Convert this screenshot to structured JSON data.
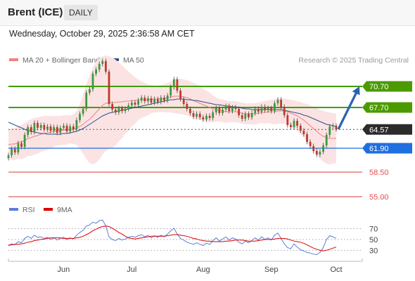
{
  "header": {
    "title": "Brent (ICE)",
    "period": "DAILY"
  },
  "timestamp": "Wednesday, October 29, 2025 2:36:58 AM CET",
  "legend": {
    "ma20": "MA 20 + Bollinger Bands",
    "ma50": "MA 50",
    "rsi": "RSI",
    "ma9": "9MA",
    "colors": {
      "ma20": "#f08080",
      "ma50": "#2b4f8c",
      "rsi": "#5b7fd6",
      "ma9": "#dd0000"
    }
  },
  "credit": "Research © 2025 Trading Central",
  "chart_data": [
    {
      "type": "candlestick",
      "ylim": [
        53.5,
        73.5
      ],
      "x_ticks": [
        "Jun",
        "Jul",
        "Aug",
        "Sep",
        "Oct"
      ],
      "current_price": 64.57,
      "levels": [
        {
          "value": 70.7,
          "label": "70.70",
          "kind": "resistance",
          "color": "#3f9f00"
        },
        {
          "value": 67.7,
          "label": "67.70",
          "kind": "resistance",
          "color": "#3f9f00"
        },
        {
          "value": 64.57,
          "label": "64.57",
          "kind": "price",
          "color": "#2b2b2b"
        },
        {
          "value": 61.9,
          "label": "61.90",
          "kind": "pivot",
          "color": "#1f6fe0"
        },
        {
          "value": 58.5,
          "label": "58.50",
          "kind": "support",
          "color": "#e06060"
        },
        {
          "value": 55.0,
          "label": "55.00",
          "kind": "support",
          "color": "#e06060"
        }
      ],
      "forecast": {
        "from": 64.6,
        "to": 70.7
      },
      "closes": [
        60.9,
        61.8,
        61.3,
        62.6,
        62.1,
        63.8,
        64.9,
        64.2,
        65.5,
        64.8,
        65.2,
        64.6,
        65.0,
        64.4,
        64.9,
        64.1,
        64.8,
        65.1,
        64.3,
        65.0,
        64.6,
        65.9,
        66.8,
        67.5,
        69.8,
        70.3,
        72.5,
        73.1,
        73.9,
        74.3,
        72.8,
        68.2,
        67.4,
        67.0,
        67.6,
        67.2,
        67.5,
        68.0,
        68.4,
        68.1,
        68.7,
        69.1,
        68.6,
        69.0,
        68.4,
        68.9,
        68.5,
        69.1,
        68.7,
        69.4,
        70.6,
        71.7,
        70.1,
        68.9,
        68.2,
        67.5,
        66.9,
        66.4,
        66.8,
        66.3,
        66.0,
        66.5,
        66.2,
        67.0,
        67.6,
        66.9,
        67.4,
        67.9,
        67.2,
        67.7,
        67.5,
        66.6,
        66.1,
        66.8,
        66.3,
        66.9,
        67.5,
        67.1,
        67.8,
        67.3,
        67.6,
        67.2,
        68.3,
        68.8,
        67.8,
        66.6,
        65.2,
        64.9,
        65.8,
        65.1,
        64.4,
        63.9,
        62.8,
        62.2,
        61.5,
        61.0,
        61.4,
        62.3,
        63.8,
        65.0,
        65.1,
        64.6
      ],
      "ma20": [
        62.4,
        62.5,
        62.5,
        62.7,
        62.8,
        63.0,
        63.3,
        63.4,
        63.6,
        63.7,
        63.9,
        64.0,
        64.1,
        64.2,
        64.3,
        64.4,
        64.4,
        64.5,
        64.5,
        64.6,
        64.6,
        64.8,
        65.0,
        65.3,
        65.7,
        66.0,
        66.5,
        67.0,
        67.5,
        68.0,
        68.3,
        68.4,
        68.4,
        68.4,
        68.5,
        68.5,
        68.6,
        68.6,
        68.7,
        68.7,
        68.8,
        68.8,
        68.8,
        68.8,
        68.9,
        68.9,
        68.9,
        69.0,
        69.0,
        69.1,
        69.2,
        69.3,
        69.3,
        69.3,
        69.2,
        69.1,
        68.9,
        68.7,
        68.5,
        68.3,
        68.1,
        67.9,
        67.7,
        67.5,
        67.4,
        67.3,
        67.2,
        67.1,
        67.1,
        67.1,
        67.1,
        67.0,
        66.9,
        66.8,
        66.8,
        66.8,
        66.8,
        66.9,
        67.0,
        67.0,
        67.1,
        67.1,
        67.1,
        67.2,
        67.2,
        67.2,
        67.1,
        66.9,
        66.7,
        66.5,
        66.2,
        65.9,
        65.5,
        65.1,
        64.7,
        64.3,
        63.9,
        63.6,
        63.4,
        63.3,
        63.3,
        63.3
      ],
      "bb_upper": [
        64.5,
        64.7,
        64.8,
        65.0,
        65.2,
        65.5,
        65.8,
        66.0,
        66.2,
        66.3,
        66.4,
        66.5,
        66.5,
        66.5,
        66.5,
        66.5,
        66.5,
        66.6,
        66.6,
        66.6,
        66.7,
        67.2,
        68.2,
        69.5,
        71.0,
        72.2,
        73.4,
        74.2,
        74.7,
        75.0,
        75.1,
        75.0,
        74.8,
        74.5,
        74.1,
        73.7,
        73.2,
        72.8,
        72.4,
        72.0,
        71.7,
        71.4,
        71.2,
        71.0,
        70.9,
        70.8,
        70.8,
        70.9,
        71.0,
        71.2,
        71.4,
        71.7,
        71.8,
        71.8,
        71.7,
        71.6,
        71.4,
        71.2,
        71.0,
        70.7,
        70.4,
        70.1,
        69.8,
        69.4,
        69.1,
        68.9,
        68.8,
        68.7,
        68.6,
        68.6,
        68.6,
        68.5,
        68.4,
        68.3,
        68.3,
        68.3,
        68.3,
        68.4,
        68.5,
        68.6,
        68.7,
        68.8,
        68.9,
        69.0,
        69.0,
        69.0,
        68.9,
        68.8,
        68.7,
        68.6,
        68.5,
        68.3,
        68.2,
        68.0,
        67.8,
        67.6,
        67.4,
        67.2,
        67.1,
        67.0,
        66.9,
        66.8
      ],
      "bb_lower": [
        60.3,
        60.3,
        60.2,
        60.4,
        60.4,
        60.5,
        60.8,
        60.8,
        61.0,
        61.1,
        61.4,
        61.5,
        61.7,
        61.9,
        62.1,
        62.3,
        62.3,
        62.4,
        62.4,
        62.6,
        62.5,
        62.4,
        61.8,
        61.1,
        60.4,
        59.8,
        59.6,
        59.8,
        60.3,
        61.0,
        61.5,
        61.8,
        62.0,
        62.3,
        62.9,
        63.3,
        64.0,
        64.4,
        65.0,
        65.4,
        65.9,
        66.2,
        66.4,
        66.6,
        66.9,
        67.0,
        67.0,
        67.1,
        67.0,
        67.0,
        67.0,
        66.9,
        66.8,
        66.8,
        66.7,
        66.6,
        66.4,
        66.2,
        66.0,
        65.9,
        65.8,
        65.7,
        65.6,
        65.6,
        65.7,
        65.7,
        65.6,
        65.5,
        65.6,
        65.6,
        65.6,
        65.5,
        65.4,
        65.3,
        65.3,
        65.3,
        65.3,
        65.4,
        65.5,
        65.4,
        65.5,
        65.4,
        65.3,
        65.4,
        65.4,
        65.4,
        65.3,
        65.0,
        64.7,
        64.4,
        63.9,
        63.5,
        62.8,
        62.2,
        61.6,
        61.0,
        60.4,
        60.0,
        59.7,
        59.6,
        59.7,
        59.8
      ],
      "ma50": [
        65.6,
        65.4,
        65.2,
        65.0,
        64.8,
        64.6,
        64.4,
        64.3,
        64.2,
        64.1,
        64.0,
        64.0,
        63.9,
        63.9,
        63.9,
        63.9,
        63.9,
        64.0,
        64.0,
        64.1,
        64.2,
        64.3,
        64.5,
        64.7,
        65.0,
        65.3,
        65.6,
        65.9,
        66.2,
        66.5,
        66.7,
        66.9,
        67.0,
        67.1,
        67.2,
        67.3,
        67.4,
        67.5,
        67.6,
        67.7,
        67.8,
        67.9,
        68.0,
        68.1,
        68.2,
        68.3,
        68.4,
        68.5,
        68.6,
        68.7,
        68.8,
        68.8,
        68.9,
        68.9,
        68.9,
        68.8,
        68.8,
        68.7,
        68.7,
        68.6,
        68.5,
        68.4,
        68.3,
        68.2,
        68.1,
        68.1,
        68.0,
        67.9,
        67.9,
        67.8,
        67.8,
        67.7,
        67.6,
        67.5,
        67.5,
        67.4,
        67.4,
        67.4,
        67.4,
        67.4,
        67.4,
        67.4,
        67.4,
        67.4,
        67.4,
        67.3,
        67.2,
        67.1,
        67.0,
        66.9,
        66.8,
        66.6,
        66.5,
        66.3,
        66.1,
        65.9,
        65.7,
        65.5,
        65.3,
        65.2,
        65.1,
        65.0
      ]
    },
    {
      "type": "line",
      "ylim": [
        20,
        85
      ],
      "y_ticks": [
        "70",
        "50",
        "30"
      ],
      "series": [
        {
          "name": "RSI",
          "values": [
            38,
            42,
            40,
            46,
            44,
            52,
            56,
            52,
            58,
            54,
            55,
            52,
            54,
            50,
            53,
            49,
            52,
            54,
            50,
            53,
            51,
            58,
            63,
            67,
            75,
            77,
            82,
            80,
            85,
            86,
            75,
            55,
            50,
            48,
            52,
            49,
            51,
            54,
            56,
            54,
            57,
            59,
            55,
            58,
            53,
            57,
            54,
            58,
            55,
            60,
            66,
            71,
            60,
            52,
            49,
            45,
            43,
            41,
            44,
            41,
            39,
            43,
            41,
            48,
            53,
            47,
            51,
            55,
            49,
            53,
            51,
            45,
            42,
            47,
            44,
            48,
            53,
            49,
            55,
            50,
            53,
            49,
            58,
            62,
            52,
            42,
            35,
            33,
            42,
            36,
            31,
            29,
            26,
            25,
            23,
            22,
            26,
            35,
            50,
            57,
            55,
            52
          ]
        },
        {
          "name": "9MA",
          "values": [
            40,
            40,
            41,
            41,
            42,
            43,
            45,
            46,
            48,
            49,
            50,
            51,
            52,
            53,
            53,
            53,
            53,
            52,
            52,
            52,
            52,
            53,
            54,
            56,
            59,
            62,
            66,
            69,
            72,
            74,
            75,
            74,
            71,
            67,
            63,
            60,
            56,
            53,
            52,
            51,
            52,
            53,
            54,
            55,
            56,
            56,
            56,
            56,
            56,
            57,
            58,
            59,
            59,
            58,
            57,
            56,
            54,
            52,
            51,
            49,
            48,
            47,
            47,
            46,
            46,
            46,
            46,
            47,
            47,
            48,
            49,
            49,
            49,
            48,
            47,
            47,
            47,
            48,
            49,
            50,
            50,
            50,
            51,
            52,
            52,
            52,
            51,
            49,
            47,
            46,
            45,
            43,
            40,
            37,
            34,
            32,
            30,
            29,
            30,
            32,
            34,
            36
          ]
        }
      ]
    }
  ]
}
